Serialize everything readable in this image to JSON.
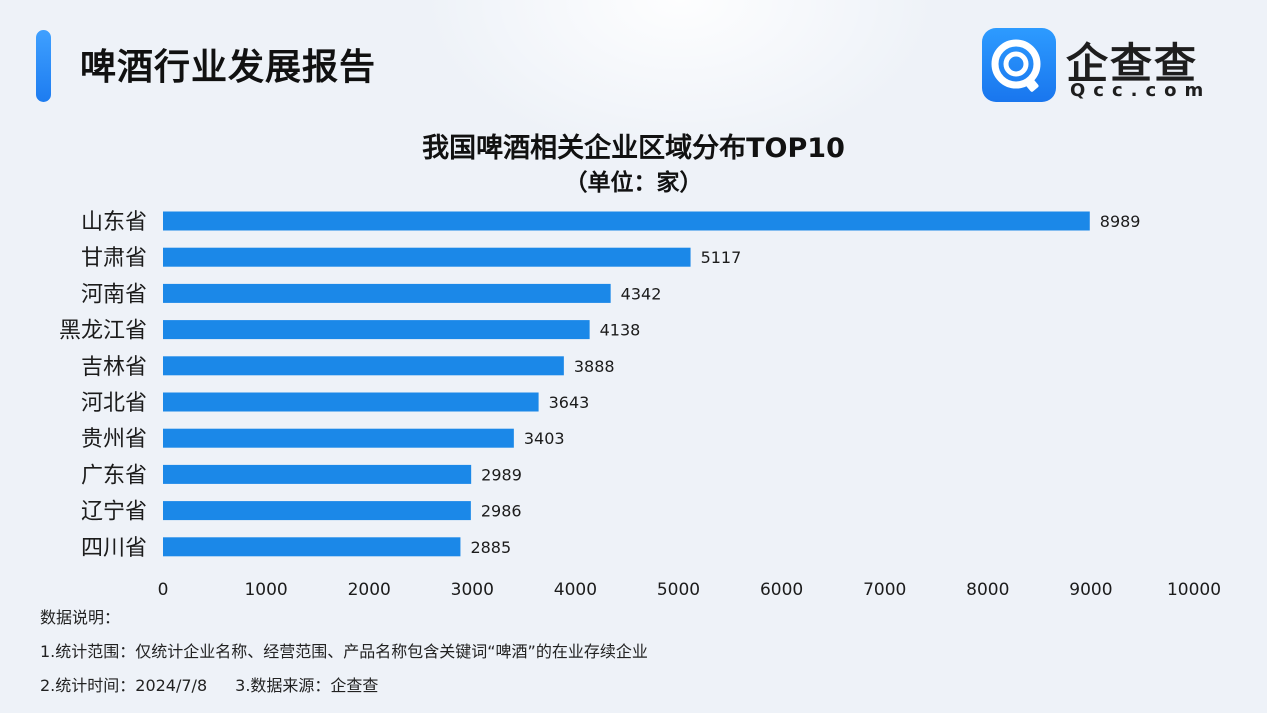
{
  "header": {
    "title": "啤酒行业发展报告"
  },
  "logo": {
    "name": "企查查",
    "domain": "Qcc.com",
    "icon": "qcc-logo-icon",
    "color": "#1f86f5"
  },
  "chart_data": {
    "type": "bar",
    "orientation": "horizontal",
    "title": "我国啤酒相关企业区域分布TOP10",
    "subtitle": "（单位：家）",
    "categories": [
      "山东省",
      "甘肃省",
      "河南省",
      "黑龙江省",
      "吉林省",
      "河北省",
      "贵州省",
      "广东省",
      "辽宁省",
      "四川省"
    ],
    "values": [
      8989,
      5117,
      4342,
      4138,
      3888,
      3643,
      3403,
      2989,
      2986,
      2885
    ],
    "xlim": [
      0,
      10000
    ],
    "xticks": [
      "0",
      "1000",
      "2000",
      "3000",
      "4000",
      "5000",
      "6000",
      "7000",
      "8000",
      "9000",
      "10000"
    ],
    "bar_color": "#1b88e8",
    "grid": false,
    "legend": "none",
    "data_labels": true
  },
  "notes": {
    "heading": "数据说明：",
    "line1": "1.统计范围：仅统计企业名称、经营范围、产品名称包含关键词“啤酒”的在业存续企业",
    "line2a": "2.统计时间：2024/7/8",
    "line2b": "3.数据来源：企查查"
  }
}
